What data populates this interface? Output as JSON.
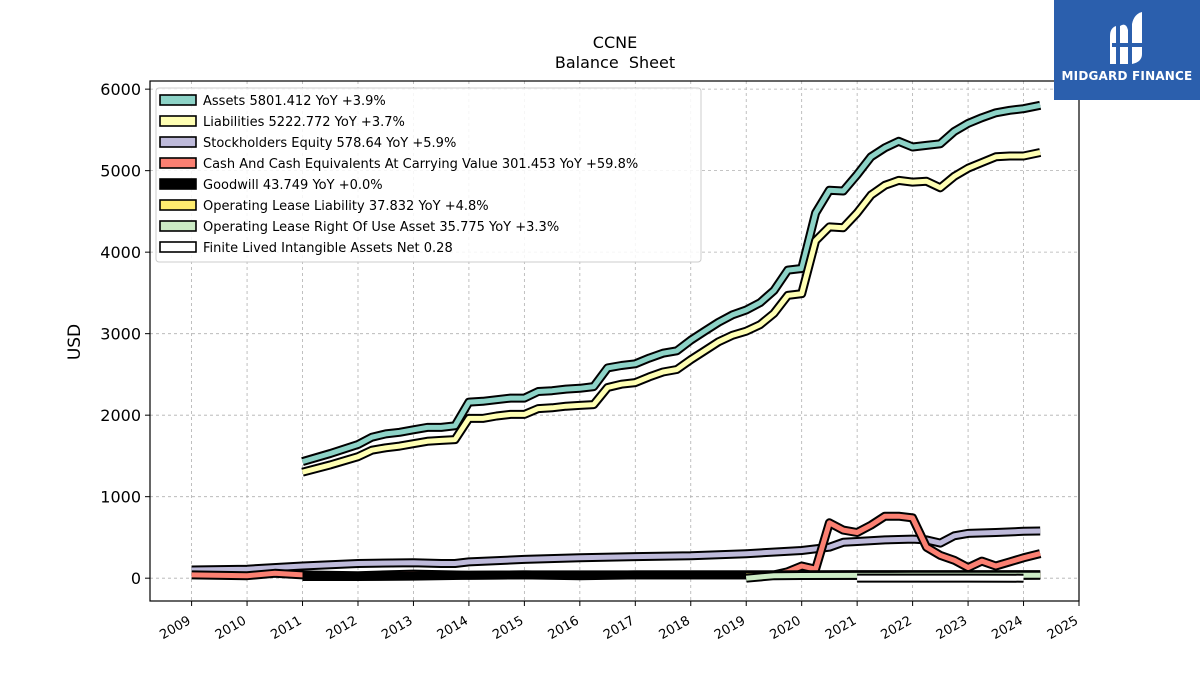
{
  "chart_data": {
    "type": "line",
    "title": "CCNE",
    "subtitle": "Balance  Sheet",
    "ylabel": "USD",
    "xlabel": "",
    "ylim": [
      -280,
      6100
    ],
    "xlim": [
      2008.25,
      2025.0
    ],
    "yticks": [
      0,
      1000,
      2000,
      3000,
      4000,
      5000,
      6000
    ],
    "xticks": [
      2009,
      2010,
      2011,
      2012,
      2013,
      2014,
      2015,
      2016,
      2017,
      2018,
      2019,
      2020,
      2021,
      2022,
      2023,
      2024,
      2025
    ],
    "grid": true,
    "legend_position": "top-left",
    "series": [
      {
        "name": "Assets  5801.412 YoY +3.9%",
        "color": "#8dd3c7",
        "x": [
          2011.0,
          2011.5,
          2012.0,
          2012.25,
          2012.5,
          2012.75,
          2013.0,
          2013.25,
          2013.5,
          2013.75,
          2014.0,
          2014.25,
          2014.5,
          2014.75,
          2015.0,
          2015.25,
          2015.5,
          2015.75,
          2016.0,
          2016.25,
          2016.5,
          2016.75,
          2017.0,
          2017.25,
          2017.5,
          2017.75,
          2018.0,
          2018.25,
          2018.5,
          2018.75,
          2019.0,
          2019.25,
          2019.5,
          2019.75,
          2020.0,
          2020.25,
          2020.5,
          2020.75,
          2021.0,
          2021.25,
          2021.5,
          2021.75,
          2022.0,
          2022.25,
          2022.5,
          2022.75,
          2023.0,
          2023.25,
          2023.5,
          2023.75,
          2024.0,
          2024.3
        ],
        "values": [
          1430,
          1530,
          1640,
          1730,
          1770,
          1790,
          1820,
          1850,
          1850,
          1870,
          2160,
          2170,
          2190,
          2210,
          2210,
          2290,
          2300,
          2320,
          2330,
          2350,
          2580,
          2610,
          2630,
          2700,
          2760,
          2790,
          2920,
          3030,
          3140,
          3230,
          3290,
          3380,
          3530,
          3780,
          3800,
          4480,
          4760,
          4750,
          4950,
          5170,
          5280,
          5360,
          5290,
          5310,
          5330,
          5480,
          5580,
          5650,
          5710,
          5740,
          5760,
          5801.412
        ]
      },
      {
        "name": "Liabilities  5222.772 YoY +3.7%",
        "color": "#ffffb3",
        "x": [
          2011.0,
          2011.5,
          2012.0,
          2012.25,
          2012.5,
          2012.75,
          2013.0,
          2013.25,
          2013.5,
          2013.75,
          2014.0,
          2014.25,
          2014.5,
          2014.75,
          2015.0,
          2015.25,
          2015.5,
          2015.75,
          2016.0,
          2016.25,
          2016.5,
          2016.75,
          2017.0,
          2017.25,
          2017.5,
          2017.75,
          2018.0,
          2018.25,
          2018.5,
          2018.75,
          2019.0,
          2019.25,
          2019.5,
          2019.75,
          2020.0,
          2020.25,
          2020.5,
          2020.75,
          2021.0,
          2021.25,
          2021.5,
          2021.75,
          2022.0,
          2022.25,
          2022.5,
          2022.75,
          2023.0,
          2023.25,
          2023.5,
          2023.75,
          2024.0,
          2024.3
        ],
        "values": [
          1300,
          1390,
          1490,
          1570,
          1600,
          1620,
          1650,
          1680,
          1690,
          1700,
          1960,
          1960,
          1990,
          2010,
          2010,
          2080,
          2090,
          2110,
          2120,
          2130,
          2340,
          2380,
          2400,
          2470,
          2530,
          2560,
          2680,
          2790,
          2900,
          2980,
          3030,
          3110,
          3250,
          3470,
          3490,
          4140,
          4310,
          4300,
          4480,
          4700,
          4820,
          4880,
          4860,
          4870,
          4790,
          4930,
          5030,
          5100,
          5170,
          5180,
          5180,
          5222.772
        ]
      },
      {
        "name": "Stockholders Equity  578.64 YoY +5.9%",
        "color": "#bebada",
        "x": [
          2009.0,
          2010.0,
          2011.0,
          2012.0,
          2013.0,
          2013.5,
          2013.75,
          2014.0,
          2015.0,
          2016.0,
          2017.0,
          2018.0,
          2019.0,
          2020.0,
          2020.5,
          2020.75,
          2021.0,
          2021.5,
          2022.0,
          2022.25,
          2022.5,
          2022.75,
          2023.0,
          2023.5,
          2024.0,
          2024.3
        ],
        "values": [
          100,
          110,
          150,
          180,
          190,
          180,
          180,
          200,
          230,
          250,
          265,
          275,
          300,
          340,
          380,
          440,
          450,
          470,
          480,
          470,
          430,
          520,
          550,
          560,
          575,
          578.64
        ]
      },
      {
        "name": "Cash And Cash Equivalents At Carrying Value  301.453 YoY +59.8%",
        "color": "#fb8072",
        "x": [
          2009.0,
          2010.0,
          2010.5,
          2011.0,
          2012.0,
          2013.0,
          2014.0,
          2015.0,
          2016.0,
          2017.0,
          2018.0,
          2019.0,
          2019.5,
          2019.75,
          2020.0,
          2020.25,
          2020.5,
          2020.75,
          2021.0,
          2021.25,
          2021.5,
          2021.75,
          2022.0,
          2022.25,
          2022.5,
          2022.75,
          2023.0,
          2023.25,
          2023.5,
          2023.75,
          2024.0,
          2024.3
        ],
        "values": [
          40,
          30,
          60,
          40,
          30,
          50,
          35,
          40,
          40,
          40,
          40,
          40,
          40,
          80,
          150,
          110,
          680,
          590,
          560,
          650,
          760,
          760,
          740,
          380,
          280,
          220,
          130,
          210,
          150,
          200,
          250,
          301.453
        ]
      },
      {
        "name": "Goodwill  43.749 YoY +0.0%",
        "color": "#000000",
        "x": [
          2011.0,
          2012.0,
          2013.0,
          2014.0,
          2015.0,
          2016.0,
          2017.0,
          2018.0,
          2019.0,
          2020.0,
          2021.0,
          2022.0,
          2023.0,
          2024.0,
          2024.3
        ],
        "values": [
          20,
          20,
          25,
          35,
          40,
          30,
          40,
          40,
          40,
          43,
          44,
          44,
          44,
          43.749,
          43.749
        ]
      },
      {
        "name": "Operating Lease Liability  37.832 YoY +4.8%",
        "color": "#ffed6f",
        "x": [
          2019.0,
          2020.0,
          2021.0,
          2022.0,
          2023.0,
          2024.0,
          2024.3
        ],
        "values": [
          30,
          35,
          36,
          36,
          36,
          37,
          37.832
        ]
      },
      {
        "name": "Operating Lease Right Of Use Asset  35.775 YoY +3.3%",
        "color": "#ccebc5",
        "x": [
          2019.0,
          2019.5,
          2020.0,
          2021.0,
          2022.0,
          2023.0,
          2024.0,
          2024.3
        ],
        "values": [
          0,
          30,
          33,
          34,
          35,
          35,
          35,
          35.775
        ]
      },
      {
        "name": "Finite Lived Intangible Assets Net  0.28",
        "color": "#ffffff",
        "x": [
          2021.0,
          2022.0,
          2023.0,
          2024.0
        ],
        "values": [
          1,
          0.8,
          0.5,
          0.28
        ]
      }
    ]
  },
  "logo": {
    "text": "MIDGARD FINANCE"
  }
}
